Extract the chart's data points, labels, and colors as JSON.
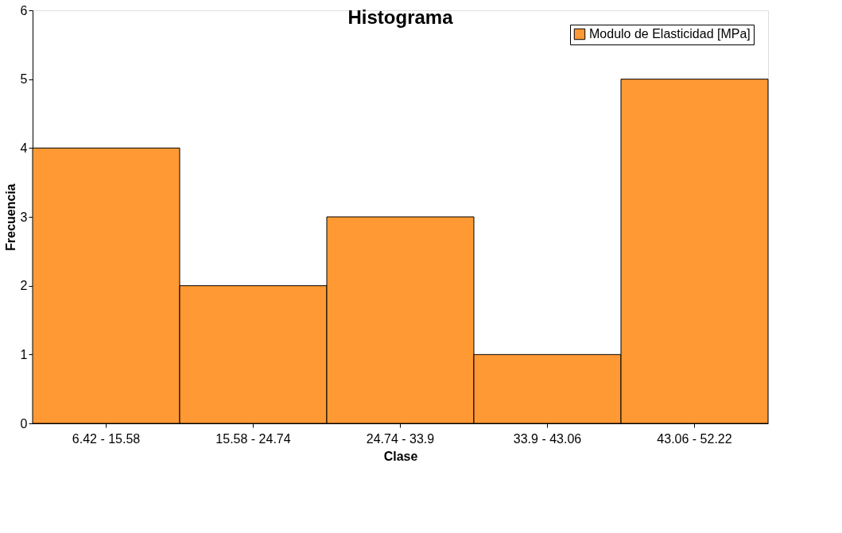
{
  "chart_data": {
    "type": "bar",
    "title": "Histograma",
    "xlabel": "Clase",
    "ylabel": "Frecuencia",
    "categories": [
      "6.42 - 15.58",
      "15.58 - 24.74",
      "24.74 - 33.9",
      "33.9 - 43.06",
      "43.06 - 52.22"
    ],
    "series": [
      {
        "name": "Modulo de Elasticidad [MPa]",
        "color": "#ff9933",
        "values": [
          4,
          2,
          3,
          1,
          5
        ]
      }
    ],
    "ylim": [
      0,
      6
    ],
    "yticks": [
      0,
      1,
      2,
      3,
      4,
      5,
      6
    ],
    "grid": false,
    "legend": "top right"
  }
}
